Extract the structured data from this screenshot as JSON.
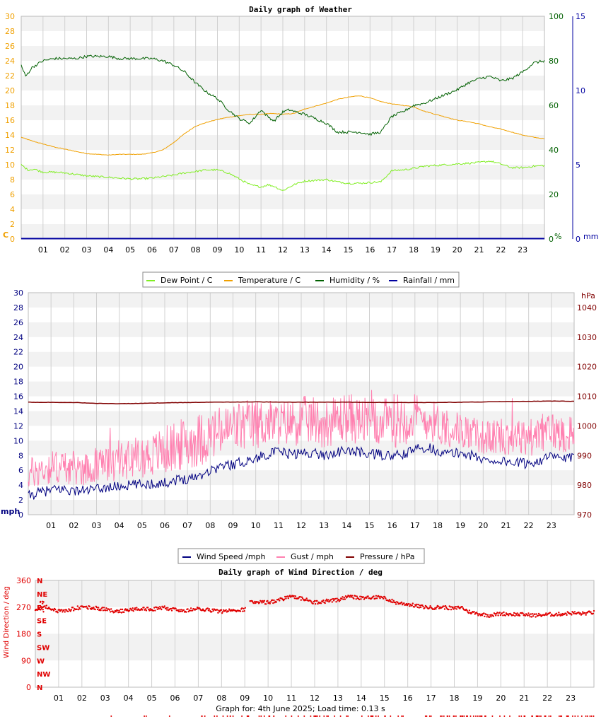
{
  "footer": "Graph for: 4th June 2025; Load time: 0.13 s",
  "hours": [
    "01",
    "02",
    "03",
    "04",
    "05",
    "06",
    "07",
    "08",
    "09",
    "10",
    "11",
    "12",
    "13",
    "14",
    "15",
    "16",
    "17",
    "18",
    "19",
    "20",
    "21",
    "22",
    "23"
  ],
  "colors": {
    "dewpoint": "#80ee22",
    "temperature": "#f0a000",
    "humidity": "#006000",
    "rainfall": "#0000a0",
    "windspeed": "#000080",
    "gust": "#ff80b0",
    "pressure": "#800000",
    "direction": "#e00000",
    "left_axis_c": "#f0a000",
    "left_axis_blue": "#000080"
  },
  "chart_data": [
    {
      "type": "line",
      "title": "Daily graph of Weather",
      "x_range": [
        0,
        24
      ],
      "left_axis": {
        "unit": "C",
        "range": [
          0,
          30
        ],
        "ticks": [
          "0",
          "2",
          "4",
          "6",
          "8",
          "10",
          "12",
          "14",
          "16",
          "18",
          "20",
          "22",
          "24",
          "26",
          "28",
          "30"
        ]
      },
      "right_axis_1": {
        "unit": "%",
        "range": [
          0,
          100
        ],
        "ticks": [
          "0",
          "20",
          "40",
          "60",
          "80",
          "100"
        ]
      },
      "right_axis_2": {
        "unit": "mm",
        "range": [
          0,
          15
        ],
        "ticks": [
          "0",
          "5",
          "10",
          "15"
        ]
      },
      "grid": true,
      "legend_position": "bottom",
      "series": [
        {
          "name": "Dew Point / C",
          "axis": "left",
          "x": [
            0,
            0.3,
            0.6,
            1,
            1.5,
            2,
            2.5,
            3,
            3.5,
            4,
            4.5,
            5,
            5.5,
            6,
            6.5,
            7,
            7.5,
            8,
            8.5,
            9,
            9.5,
            10,
            10.5,
            11,
            11.3,
            11.6,
            12,
            12.5,
            13,
            13.5,
            14,
            14.5,
            15,
            15.5,
            16,
            16.5,
            17,
            17.5,
            18,
            18.5,
            19,
            19.5,
            20,
            20.5,
            21,
            21.5,
            22,
            22.5,
            23,
            23.5,
            24
          ],
          "y": [
            10,
            9.3,
            9.4,
            9.0,
            9.0,
            8.9,
            8.7,
            8.5,
            8.4,
            8.3,
            8.2,
            8.1,
            8.1,
            8.2,
            8.4,
            8.6,
            8.9,
            9.1,
            9.3,
            9.3,
            8.9,
            8.1,
            7.3,
            7.0,
            7.3,
            7.1,
            6.5,
            7.3,
            7.8,
            7.9,
            8.0,
            7.7,
            7.5,
            7.5,
            7.6,
            7.7,
            9.2,
            9.3,
            9.5,
            9.8,
            9.9,
            10.0,
            10.1,
            10.2,
            10.3,
            10.5,
            10.1,
            9.6,
            9.6,
            9.8,
            9.9
          ]
        },
        {
          "name": "Temperature / C",
          "axis": "left",
          "x": [
            0,
            0.5,
            1,
            1.5,
            2,
            2.5,
            3,
            3.5,
            4,
            4.5,
            5,
            5.5,
            6,
            6.5,
            7,
            7.5,
            8,
            8.5,
            9,
            9.5,
            10,
            10.5,
            11,
            11.5,
            12,
            12.5,
            13,
            13.5,
            14,
            14.5,
            15,
            15.5,
            16,
            16.5,
            17,
            17.5,
            18,
            18.5,
            19,
            19.5,
            20,
            20.5,
            21,
            21.5,
            22,
            22.5,
            23,
            23.5,
            24
          ],
          "y": [
            13.7,
            13.2,
            12.8,
            12.4,
            12.1,
            11.8,
            11.5,
            11.4,
            11.3,
            11.4,
            11.4,
            11.4,
            11.6,
            12.0,
            13.0,
            14.2,
            15.2,
            15.7,
            16.1,
            16.4,
            16.6,
            16.8,
            16.8,
            16.9,
            16.8,
            16.9,
            17.5,
            17.9,
            18.3,
            18.8,
            19.1,
            19.3,
            19.0,
            18.5,
            18.2,
            18.0,
            17.8,
            17.2,
            16.8,
            16.4,
            16.0,
            15.8,
            15.5,
            15.1,
            14.8,
            14.4,
            14.0,
            13.7,
            13.5
          ]
        },
        {
          "name": "Humidity / %",
          "axis": "right_1",
          "x": [
            0,
            0.2,
            0.5,
            1,
            1.5,
            2,
            2.5,
            3,
            3.5,
            4,
            4.5,
            5,
            5.5,
            6,
            6.5,
            7,
            7.5,
            8,
            8.5,
            9,
            9.5,
            10,
            10.5,
            11,
            11.3,
            11.6,
            12,
            12.3,
            12.6,
            13,
            13.5,
            14,
            14.5,
            15,
            15.5,
            16,
            16.5,
            17,
            17.5,
            18,
            18.5,
            19,
            19.5,
            20,
            20.5,
            21,
            21.5,
            22,
            22.5,
            23,
            23.5,
            24
          ],
          "y": [
            78,
            73,
            77,
            80,
            81,
            81,
            81,
            82,
            82,
            82,
            81,
            81,
            81,
            81,
            80,
            78,
            75,
            70,
            66,
            63,
            58,
            54,
            52,
            58,
            55,
            53,
            57,
            58,
            57,
            56,
            54,
            52,
            48,
            48,
            48,
            47,
            48,
            55,
            57,
            60,
            61,
            63,
            65,
            67,
            70,
            72,
            73,
            71,
            72,
            75,
            79,
            80
          ]
        },
        {
          "name": "Rainfall / mm",
          "axis": "right_2",
          "x": [
            0,
            24
          ],
          "y": [
            0,
            0
          ]
        }
      ]
    },
    {
      "type": "line",
      "x_range": [
        0,
        24
      ],
      "left_axis": {
        "unit": "mph",
        "range": [
          0,
          30
        ],
        "ticks": [
          "0",
          "2",
          "4",
          "6",
          "8",
          "10",
          "12",
          "14",
          "16",
          "18",
          "20",
          "22",
          "24",
          "26",
          "28",
          "30"
        ]
      },
      "right_axis": {
        "unit": "hPa",
        "range": [
          970,
          1045
        ],
        "ticks": [
          "970",
          "980",
          "990",
          "1000",
          "1010",
          "1020",
          "1030",
          "1040"
        ]
      },
      "grid": true,
      "legend_position": "bottom",
      "series": [
        {
          "name": "Wind Speed /mph",
          "axis": "left",
          "x": [
            0,
            0.5,
            1,
            1.5,
            2,
            2.5,
            3,
            3.5,
            4,
            4.5,
            5,
            5.5,
            6,
            6.5,
            7,
            7.5,
            8,
            8.5,
            9,
            9.5,
            10,
            10.5,
            11,
            11.5,
            12,
            12.5,
            13,
            13.5,
            14,
            14.5,
            15,
            15.5,
            16,
            16.5,
            17,
            17.5,
            18,
            18.5,
            19,
            19.5,
            20,
            20.5,
            21,
            21.5,
            22,
            22.5,
            23,
            23.5,
            24
          ],
          "y": [
            2.5,
            3.0,
            3.3,
            3.5,
            3.2,
            3.3,
            3.4,
            3.7,
            3.8,
            4.0,
            4.1,
            4.2,
            4.3,
            4.7,
            4.9,
            5.3,
            6.0,
            6.6,
            6.8,
            7.2,
            7.6,
            8.2,
            8.5,
            8.2,
            8.3,
            8.4,
            8.0,
            8.4,
            8.6,
            8.5,
            8.2,
            8.1,
            7.9,
            8.1,
            8.8,
            9.2,
            8.6,
            8.2,
            8.4,
            8.0,
            7.4,
            7.3,
            7.2,
            7.0,
            6.9,
            7.4,
            7.8,
            7.6,
            7.6
          ]
        },
        {
          "name": "Gust / mph",
          "axis": "left",
          "x": [
            0,
            0.5,
            1,
            1.5,
            2,
            2.5,
            3,
            3.5,
            4,
            4.5,
            5,
            5.5,
            6,
            6.5,
            7,
            7.5,
            8,
            8.5,
            9,
            9.5,
            10,
            10.5,
            11,
            11.5,
            12,
            12.5,
            13,
            13.5,
            14,
            14.5,
            15,
            15.5,
            16,
            16.5,
            17,
            17.5,
            18,
            18.5,
            19,
            19.5,
            20,
            20.5,
            21,
            21.5,
            22,
            22.5,
            23,
            23.5,
            24
          ],
          "y": [
            6,
            6.5,
            7,
            7,
            6.8,
            6.8,
            7,
            7.5,
            8,
            8.2,
            8.5,
            8.8,
            9.5,
            10,
            10.5,
            11,
            11.5,
            12,
            12.5,
            12.8,
            13,
            13.2,
            13,
            13.2,
            13.5,
            13.5,
            13,
            13.5,
            14,
            13.5,
            13.2,
            13,
            13.5,
            14,
            14,
            13.5,
            13,
            12.5,
            12,
            11.5,
            11,
            11,
            11.5,
            11,
            11,
            11.5,
            12,
            11.5,
            12
          ]
        },
        {
          "name": "Pressure / hPa",
          "axis": "right",
          "x": [
            0,
            2,
            3,
            4,
            5,
            6,
            8,
            10,
            12,
            14,
            16,
            18,
            20,
            22,
            23,
            24
          ],
          "y": [
            1008,
            1007.9,
            1007.6,
            1007.5,
            1007.6,
            1007.8,
            1008.0,
            1008.1,
            1008.0,
            1008.0,
            1007.9,
            1007.9,
            1008.1,
            1008.3,
            1008.4,
            1008.3
          ]
        }
      ]
    },
    {
      "type": "scatter",
      "title": "Daily graph of Wind Direction / deg",
      "ylabel": "Wind Direction / deg",
      "x_range": [
        0,
        24
      ],
      "y_range": [
        0,
        360
      ],
      "y_ticks": [
        "0",
        "90",
        "180",
        "270",
        "360"
      ],
      "compass_labels": [
        "N",
        "NE",
        "E",
        "SE",
        "S",
        "SW",
        "W",
        "NW",
        "N"
      ],
      "grid": true,
      "series": [
        {
          "name": "Wind Direction",
          "x": [
            0,
            0.5,
            1,
            1.5,
            2,
            2.5,
            3,
            3.5,
            4,
            4.5,
            5,
            5.5,
            6,
            6.5,
            7,
            7.5,
            8,
            8.5,
            9,
            9.2,
            9.5,
            10,
            10.5,
            11,
            11.5,
            12,
            12.5,
            13,
            13.5,
            14,
            14.5,
            15,
            15.5,
            16,
            16.5,
            17,
            17.5,
            18,
            18.3,
            18.6,
            19,
            19.5,
            20,
            20.5,
            21,
            21.5,
            22,
            22.5,
            23,
            23.5,
            24
          ],
          "y": [
            262,
            270,
            255,
            262,
            270,
            268,
            262,
            255,
            260,
            265,
            262,
            268,
            262,
            258,
            264,
            260,
            255,
            260,
            262,
            290,
            288,
            285,
            295,
            305,
            298,
            285,
            290,
            294,
            305,
            300,
            304,
            300,
            285,
            280,
            272,
            268,
            270,
            265,
            270,
            255,
            248,
            242,
            248,
            246,
            245,
            242,
            245,
            246,
            250,
            248,
            252
          ]
        }
      ]
    }
  ]
}
